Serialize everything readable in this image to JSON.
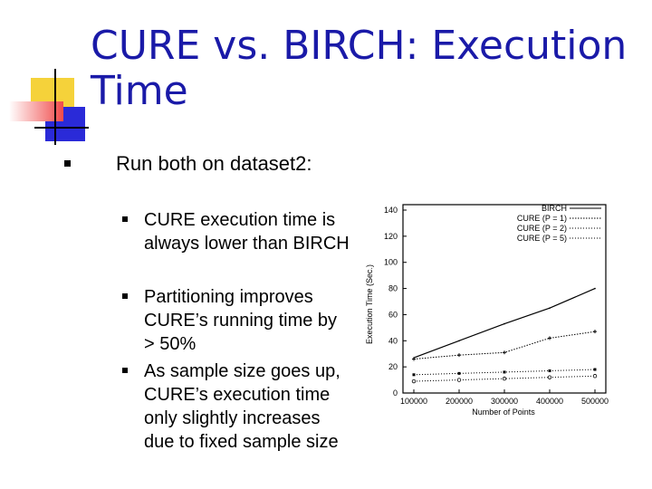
{
  "slide": {
    "title": "CURE vs. BIRCH:  Execution Time",
    "bullet": "Run both on dataset2:",
    "subbullets": [
      "CURE execution time is always lower than BIRCH",
      "Partitioning improves CURE’s running time by > 50%",
      "As sample size goes up, CURE’s execution time only slightly increases due to fixed sample size"
    ]
  },
  "colors": {
    "title": "#1a1aa8",
    "deco_yellow": "#f5d23a",
    "deco_blue": "#2a2ad8",
    "deco_red": "#f04a4a"
  },
  "chart_data": {
    "type": "line",
    "xlabel": "Number of Points",
    "ylabel": "Execution Time (Sec.)",
    "x": [
      100000,
      200000,
      300000,
      400000,
      500000
    ],
    "x_tick_labels": [
      "100000",
      "200000",
      "300000",
      "400000",
      "500000"
    ],
    "y_ticks": [
      0,
      20,
      40,
      60,
      80,
      100,
      120,
      140
    ],
    "xlim": [
      100000,
      500000
    ],
    "ylim": [
      0,
      140
    ],
    "legend_position": "top-right",
    "series": [
      {
        "name": "BIRCH",
        "values": [
          27,
          40,
          53,
          65,
          80
        ]
      },
      {
        "name": "CURE (P = 1)",
        "values": [
          26,
          29,
          31,
          42,
          47
        ]
      },
      {
        "name": "CURE (P = 2)",
        "values": [
          14,
          15,
          16,
          17,
          18
        ]
      },
      {
        "name": "CURE (P = 5)",
        "values": [
          9,
          10,
          11,
          12,
          13
        ]
      }
    ]
  }
}
